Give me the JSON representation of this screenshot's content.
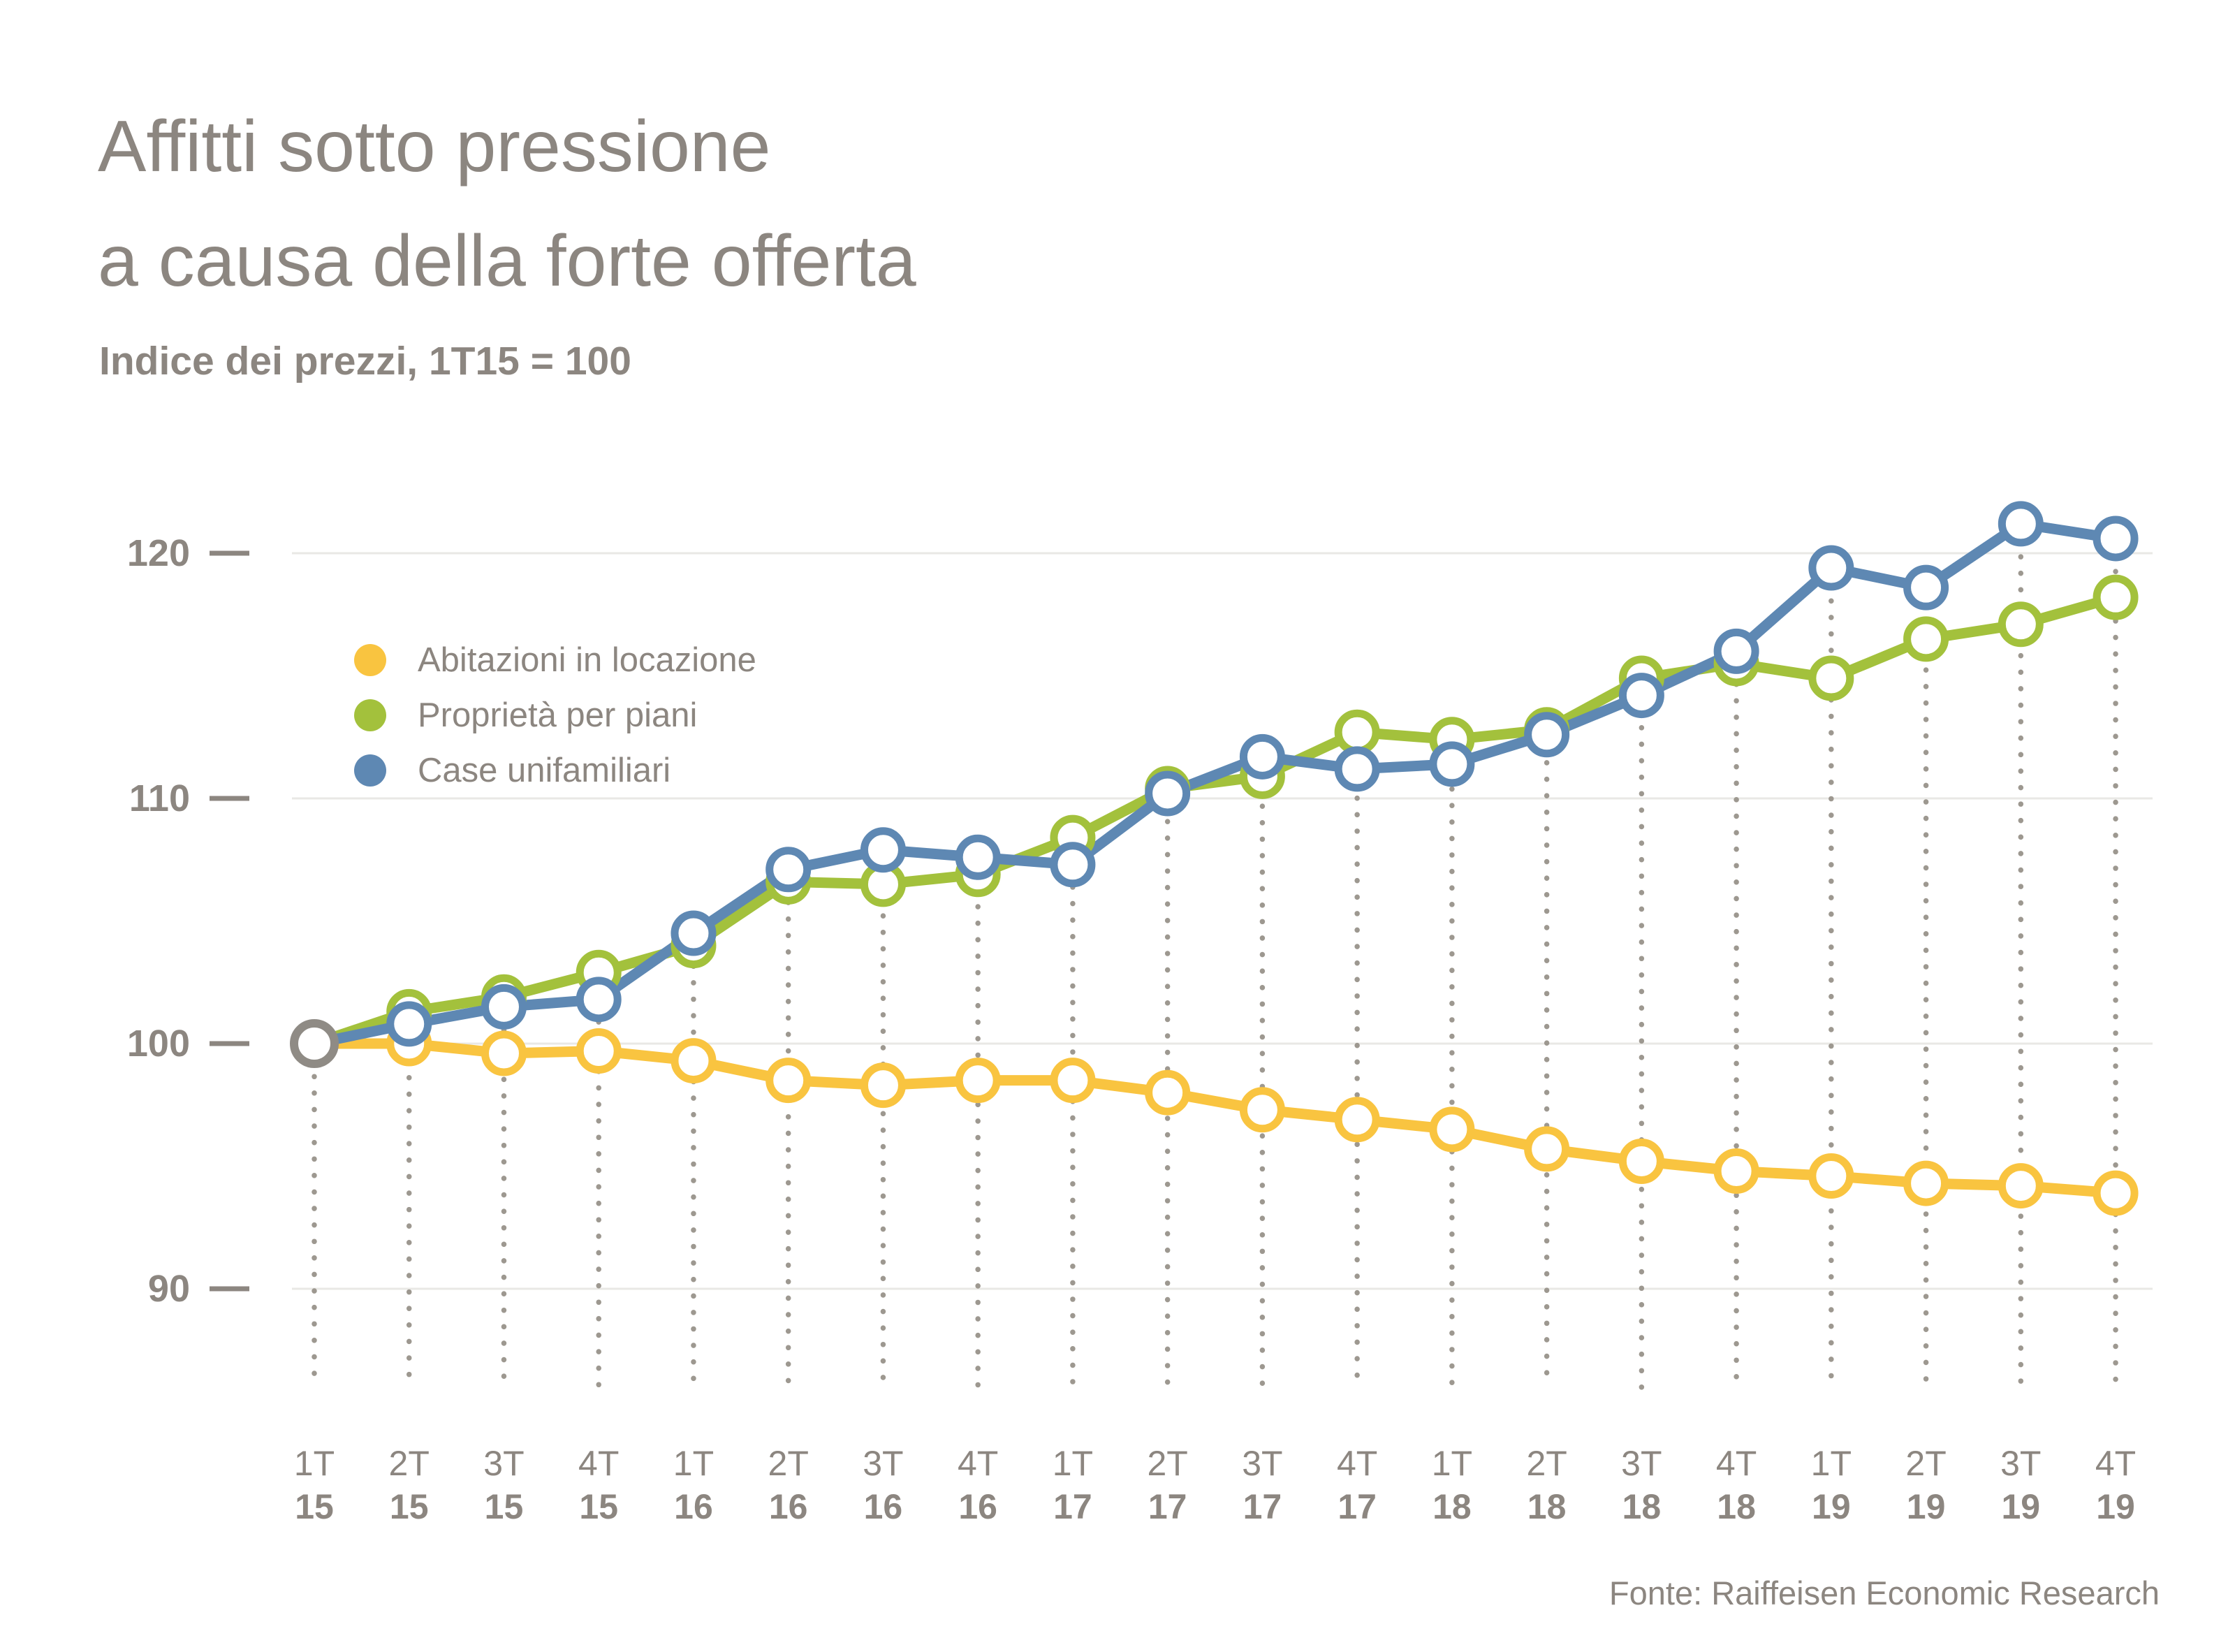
{
  "title": {
    "line1": "Affitti sotto pressione",
    "line2": "a causa della forte offerta"
  },
  "subtitle": "Indice dei prezzi, 1T15 = 100",
  "source": "Fonte: Raiffeisen Economic Research",
  "colors": {
    "text_gray": "#8C8680",
    "gridline": "#E9E8E5",
    "dotted_guide": "#9D9890",
    "start_marker": "#8F8B85",
    "yellow": "#F9C440",
    "green": "#A3C13C",
    "blue": "#5E88B3"
  },
  "chart_data": {
    "type": "line",
    "title": "Affitti sotto pressione a causa della forte offerta",
    "subtitle": "Indice dei prezzi, 1T15 = 100",
    "x_categories": [
      {
        "quarter": "1T",
        "year": "15"
      },
      {
        "quarter": "2T",
        "year": "15"
      },
      {
        "quarter": "3T",
        "year": "15"
      },
      {
        "quarter": "4T",
        "year": "15"
      },
      {
        "quarter": "1T",
        "year": "16"
      },
      {
        "quarter": "2T",
        "year": "16"
      },
      {
        "quarter": "3T",
        "year": "16"
      },
      {
        "quarter": "4T",
        "year": "16"
      },
      {
        "quarter": "1T",
        "year": "17"
      },
      {
        "quarter": "2T",
        "year": "17"
      },
      {
        "quarter": "3T",
        "year": "17"
      },
      {
        "quarter": "4T",
        "year": "17"
      },
      {
        "quarter": "1T",
        "year": "18"
      },
      {
        "quarter": "2T",
        "year": "18"
      },
      {
        "quarter": "3T",
        "year": "18"
      },
      {
        "quarter": "4T",
        "year": "18"
      },
      {
        "quarter": "1T",
        "year": "19"
      },
      {
        "quarter": "2T",
        "year": "19"
      },
      {
        "quarter": "3T",
        "year": "19"
      },
      {
        "quarter": "4T",
        "year": "19"
      }
    ],
    "y_axis": {
      "ticks": [
        120,
        110,
        100,
        90
      ],
      "min": 88,
      "max": 123,
      "grid": true
    },
    "legend_position": "top-left-inside",
    "baseline_note": "all series start at 100 in 1T15 (shared gray marker)",
    "series": [
      {
        "name": "Abitazioni in locazione",
        "color": "#F9C440",
        "values": [
          100.0,
          100.0,
          99.6,
          99.7,
          99.3,
          98.5,
          98.3,
          98.5,
          98.5,
          98.0,
          97.3,
          96.9,
          96.5,
          95.7,
          95.2,
          94.8,
          94.6,
          94.3,
          94.2,
          93.9
        ]
      },
      {
        "name": "Proprietà per piani",
        "color": "#A3C13C",
        "values": [
          100.0,
          101.3,
          101.9,
          102.9,
          104.0,
          106.6,
          106.5,
          106.9,
          108.4,
          110.4,
          110.9,
          112.7,
          112.4,
          112.8,
          114.9,
          115.5,
          114.9,
          116.5,
          117.1,
          118.2
        ]
      },
      {
        "name": "Case unifamiliari",
        "color": "#5E88B3",
        "values": [
          100.0,
          100.8,
          101.5,
          101.8,
          104.5,
          107.1,
          107.9,
          107.6,
          107.3,
          110.2,
          111.7,
          111.2,
          111.4,
          112.6,
          114.2,
          116.0,
          119.4,
          118.6,
          121.2,
          120.6
        ]
      }
    ]
  }
}
